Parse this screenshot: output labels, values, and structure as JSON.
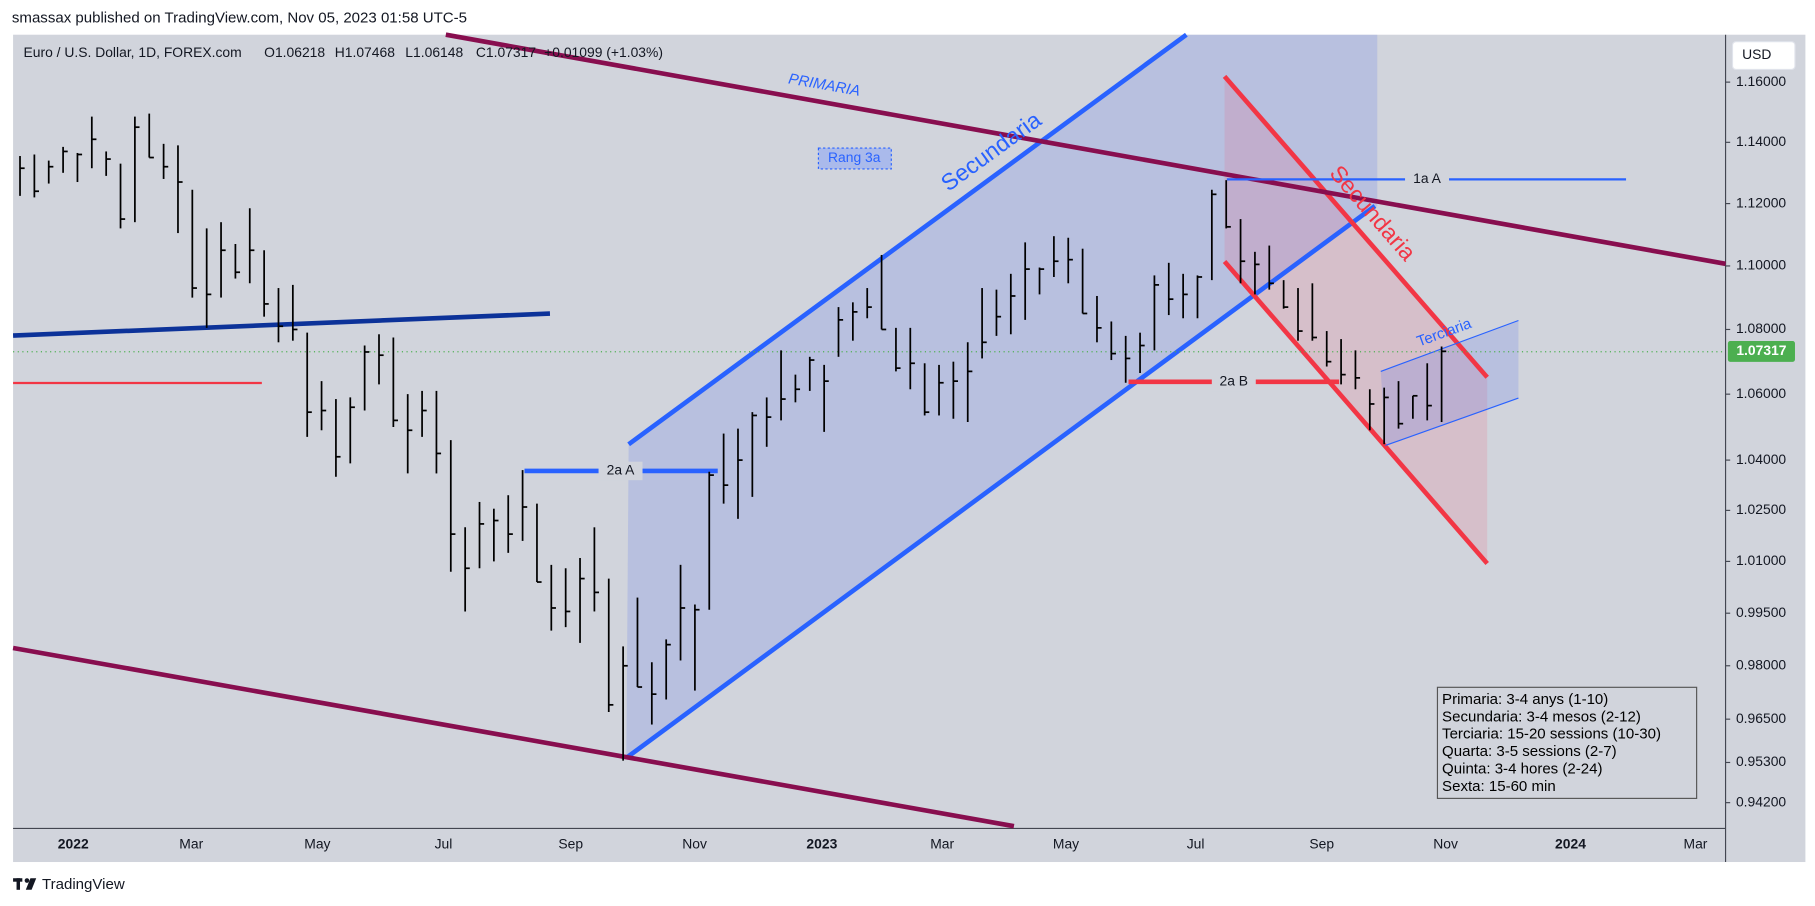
{
  "header": {
    "publisher": "smassax published on TradingView.com, Nov 05, 2023 01:58 UTC-5",
    "symbol": "Euro / U.S. Dollar, 1D, FOREX.com",
    "readout": [
      "O1.06218",
      "H1.07468",
      "L1.06148",
      "C1.07317",
      "+0.01099 (+1.03%)"
    ],
    "currency": "USD"
  },
  "footer": {
    "brand": "TradingView"
  },
  "chart_data": {
    "type": "ohlc",
    "log_scale": true,
    "grid": false,
    "color": "#000000",
    "ylim": [
      0.935,
      1.176
    ],
    "yticks": [
      {
        "value": 1.16,
        "label": "1.16000"
      },
      {
        "value": 1.14,
        "label": "1.14000"
      },
      {
        "value": 1.12,
        "label": "1.12000"
      },
      {
        "value": 1.1,
        "label": "1.10000"
      },
      {
        "value": 1.08,
        "label": "1.08000"
      },
      {
        "value": 1.06,
        "label": "1.06000"
      },
      {
        "value": 1.04,
        "label": "1.04000"
      },
      {
        "value": 1.025,
        "label": "1.02500"
      },
      {
        "value": 1.01,
        "label": "1.01000"
      },
      {
        "value": 0.995,
        "label": "0.99500"
      },
      {
        "value": 0.98,
        "label": "0.98000"
      },
      {
        "value": 0.965,
        "label": "0.96500"
      },
      {
        "value": 0.953,
        "label": "0.95300"
      },
      {
        "value": 0.942,
        "label": "0.94200"
      }
    ],
    "xaxis_labels": [
      "2022",
      "Mar",
      "May",
      "Jul",
      "Sep",
      "Nov",
      "2023",
      "Mar",
      "May",
      "Jul",
      "Sep",
      "Nov",
      "2024",
      "Mar"
    ],
    "last_price": {
      "value": 1.07317,
      "label": "1.07317",
      "color": "#4caf50"
    },
    "high": [
      1.1355,
      1.136,
      1.134,
      1.1385,
      1.1365,
      1.1485,
      1.137,
      1.133,
      1.1485,
      1.1495,
      1.1395,
      1.139,
      1.1245,
      1.112,
      1.114,
      1.107,
      1.1185,
      1.105,
      1.093,
      1.094,
      1.079,
      1.064,
      1.0585,
      1.059,
      1.075,
      1.0785,
      1.0775,
      1.06,
      1.061,
      1.061,
      1.046,
      1.02,
      1.0275,
      1.0255,
      1.0295,
      1.037,
      1.027,
      1.009,
      1.008,
      1.011,
      1.02,
      1.005,
      0.9855,
      0.9995,
      0.981,
      0.9875,
      1.009,
      0.9975,
      1.0365,
      1.048,
      1.0495,
      1.0545,
      1.059,
      1.0735,
      1.066,
      1.0715,
      1.069,
      1.087,
      1.0885,
      1.093,
      1.1035,
      1.0805,
      1.0805,
      1.0695,
      1.069,
      1.07,
      1.076,
      1.093,
      1.0925,
      1.0975,
      1.1075,
      1.0995,
      1.1095,
      1.109,
      1.1055,
      1.0905,
      1.0825,
      1.078,
      1.079,
      1.097,
      1.101,
      1.0975,
      1.097,
      1.1245,
      1.1276,
      1.115,
      1.1045,
      1.1065,
      1.0955,
      1.093,
      1.0945,
      1.0795,
      1.077,
      1.0735,
      1.0615,
      1.062,
      1.064,
      1.0595,
      1.0695,
      1.0747
    ],
    "low": [
      1.1225,
      1.122,
      1.1265,
      1.13,
      1.127,
      1.1315,
      1.129,
      1.112,
      1.114,
      1.135,
      1.128,
      1.1105,
      1.09,
      1.0805,
      1.09,
      1.096,
      1.0945,
      1.084,
      1.076,
      1.0765,
      1.047,
      1.049,
      1.035,
      1.039,
      1.055,
      1.063,
      1.05,
      1.036,
      1.047,
      1.036,
      1.007,
      0.9955,
      1.008,
      1.01,
      1.0125,
      1.016,
      1.004,
      0.99,
      0.991,
      0.9865,
      0.9955,
      0.967,
      0.9535,
      0.974,
      0.9635,
      0.9705,
      0.9815,
      0.973,
      0.996,
      1.027,
      1.0225,
      1.029,
      1.044,
      1.052,
      1.0575,
      1.061,
      1.0485,
      1.0715,
      1.0765,
      1.0835,
      1.08,
      1.067,
      1.0615,
      1.0535,
      1.0535,
      1.0525,
      1.0515,
      1.071,
      1.078,
      1.0785,
      1.083,
      1.091,
      1.0965,
      1.0945,
      1.085,
      1.076,
      1.0705,
      1.0635,
      1.0665,
      1.0735,
      1.0845,
      1.0835,
      1.0835,
      1.0955,
      1.112,
      1.0945,
      1.091,
      1.0925,
      1.0865,
      1.0765,
      1.0765,
      1.0685,
      1.063,
      1.0615,
      1.049,
      1.0448,
      1.0495,
      1.0525,
      1.052,
      1.0515
    ],
    "close": [
      1.1315,
      1.124,
      1.132,
      1.137,
      1.136,
      1.141,
      1.1345,
      1.115,
      1.145,
      1.135,
      1.132,
      1.127,
      1.093,
      1.091,
      1.105,
      1.098,
      1.105,
      1.088,
      1.081,
      1.08,
      1.0545,
      1.055,
      1.041,
      1.056,
      1.073,
      1.072,
      1.052,
      1.049,
      1.055,
      1.042,
      1.018,
      1.008,
      1.021,
      1.022,
      1.018,
      1.026,
      1.004,
      0.9965,
      0.9955,
      1.005,
      1.001,
      0.969,
      0.98,
      0.974,
      0.972,
      0.986,
      0.9965,
      0.996,
      1.0355,
      1.0325,
      1.04,
      1.0535,
      1.053,
      1.0585,
      1.0615,
      1.0705,
      1.064,
      1.083,
      1.0855,
      1.087,
      1.08,
      1.068,
      1.0695,
      1.0545,
      1.0635,
      1.064,
      1.067,
      1.076,
      1.084,
      1.0905,
      1.099,
      1.099,
      1.1015,
      1.102,
      1.085,
      1.0805,
      1.0725,
      1.071,
      1.075,
      1.094,
      1.0895,
      1.091,
      1.0965,
      1.123,
      1.1125,
      1.1015,
      1.1005,
      1.0945,
      1.087,
      1.0795,
      1.0775,
      1.07,
      1.066,
      1.065,
      1.057,
      1.059,
      1.051,
      1.0595,
      1.0565,
      1.0732
    ],
    "annotations": {
      "primaria": "PRIMARIA",
      "secundaria_up": "Secundaria",
      "secundaria_down": "Secundaria",
      "terciaria": "Terciaria",
      "rang": "Rang 3a",
      "level_1a": "1a A",
      "level_2a": "2a A",
      "level_2b": "2a B"
    },
    "notes": [
      "Primaria: 3-4 anys (1-10)",
      "Secundaria: 3-4 mesos (2-12)",
      "Terciaria: 15-20 sessions (10-30)",
      "Quarta: 3-5 sessions (2-7)",
      "Quinta: 3-4 hores (2-24)",
      "Sexta: 15-60 min"
    ]
  }
}
